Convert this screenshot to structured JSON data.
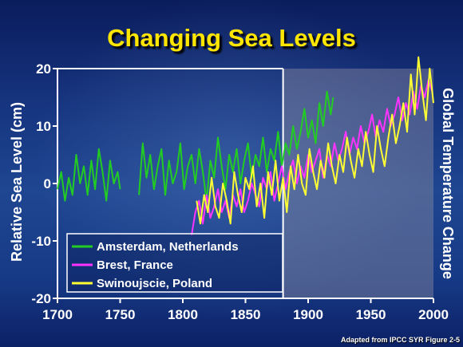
{
  "slide": {
    "title": "Changing Sea Levels",
    "credit": "Adapted from IPCC SYR Figure 2-5"
  },
  "colors": {
    "title": "#ffe600",
    "axis": "#ffffff",
    "overlay": "#8a8aa0"
  },
  "chart_data": {
    "type": "line",
    "title": "Changing Sea Levels",
    "ylabel": "Relative Sea Level (cm)",
    "ylabel_right": "Global Temperature Change",
    "xlim": [
      1700,
      2000
    ],
    "ylim": [
      -20,
      20
    ],
    "x_ticks": [
      1700,
      1750,
      1800,
      1850,
      1900,
      1950,
      2000
    ],
    "y_ticks": [
      20,
      10,
      0,
      -10,
      -20
    ],
    "legend_placement": "bottom-left",
    "shaded_region_x": [
      1880,
      2000
    ],
    "series": [
      {
        "name": "Amsterdam, Netherlands",
        "color": "#22cc22",
        "segments": [
          {
            "x": [
              1700,
              1703,
              1706,
              1709,
              1712,
              1715,
              1718,
              1721,
              1724,
              1727,
              1730,
              1733,
              1736,
              1739,
              1742,
              1745,
              1748,
              1750
            ],
            "y": [
              -1,
              2,
              -3,
              1,
              -2,
              5,
              0,
              3,
              -2,
              4,
              -1,
              6,
              2,
              -3,
              4,
              0,
              2,
              -1
            ]
          },
          {
            "x": [
              1765,
              1768,
              1771,
              1774,
              1777,
              1780,
              1783,
              1786,
              1789,
              1792,
              1795,
              1798,
              1801,
              1804,
              1807,
              1810,
              1813,
              1816,
              1819,
              1822,
              1825,
              1828,
              1831,
              1834,
              1837,
              1840,
              1843,
              1846,
              1849,
              1852,
              1855,
              1858,
              1861,
              1864,
              1867,
              1870,
              1873,
              1876,
              1879,
              1882,
              1885,
              1888,
              1891,
              1894,
              1897,
              1900,
              1903,
              1906,
              1909,
              1912,
              1915,
              1918,
              1920
            ],
            "y": [
              -2,
              7,
              1,
              5,
              -1,
              3,
              6,
              -2,
              4,
              0,
              2,
              7,
              -1,
              3,
              5,
              0,
              6,
              2,
              -3,
              4,
              1,
              8,
              3,
              -1,
              5,
              2,
              6,
              0,
              4,
              7,
              1,
              5,
              3,
              8,
              2,
              6,
              4,
              9,
              3,
              7,
              5,
              10,
              6,
              9,
              13,
              8,
              11,
              7,
              14,
              10,
              16,
              12,
              15
            ]
          }
        ]
      },
      {
        "name": "Brest, France",
        "color": "#ff33ff",
        "segments": [
          {
            "x": [
              1807,
              1810,
              1813,
              1816,
              1819,
              1822,
              1825,
              1828,
              1831,
              1834,
              1837,
              1840,
              1843,
              1846,
              1849,
              1852,
              1855,
              1858,
              1861,
              1864,
              1867,
              1870,
              1873,
              1876,
              1879,
              1882,
              1885,
              1888,
              1891,
              1894,
              1897,
              1900,
              1903,
              1906,
              1909,
              1912,
              1915,
              1918,
              1921,
              1924,
              1927,
              1930,
              1933,
              1936,
              1939,
              1942,
              1945,
              1948,
              1951,
              1954,
              1957,
              1960,
              1963,
              1966,
              1969,
              1972,
              1975,
              1978,
              1981,
              1984,
              1987,
              1990,
              1993,
              1996,
              1999
            ],
            "y": [
              -9,
              -5,
              -3,
              -7,
              -2,
              -6,
              -4,
              -1,
              -5,
              -3,
              -6,
              -2,
              -4,
              -1,
              -5,
              -3,
              0,
              -2,
              -4,
              1,
              -1,
              2,
              -3,
              0,
              3,
              -1,
              2,
              4,
              0,
              3,
              1,
              5,
              2,
              4,
              6,
              1,
              5,
              3,
              7,
              4,
              6,
              9,
              5,
              8,
              6,
              10,
              7,
              9,
              12,
              8,
              11,
              9,
              13,
              10,
              12,
              15,
              11,
              14,
              12,
              16,
              13,
              17,
              15,
              18,
              16
            ]
          }
        ]
      },
      {
        "name": "Swinoujscie, Poland",
        "color": "#ffff33",
        "segments": [
          {
            "x": [
              1811,
              1814,
              1817,
              1820,
              1823,
              1826,
              1829,
              1832,
              1835,
              1838,
              1841,
              1844,
              1847,
              1850,
              1853,
              1856,
              1859,
              1862,
              1865,
              1868,
              1871,
              1874,
              1877,
              1880,
              1883,
              1886,
              1889,
              1892,
              1895,
              1898,
              1901,
              1904,
              1907,
              1910,
              1913,
              1916,
              1919,
              1922,
              1925,
              1928,
              1931,
              1934,
              1937,
              1940,
              1943,
              1946,
              1949,
              1952,
              1955,
              1958,
              1961,
              1964,
              1967,
              1970,
              1973,
              1976,
              1979,
              1982,
              1985,
              1988,
              1991,
              1994,
              1997,
              2000
            ],
            "y": [
              -3,
              -7,
              -2,
              -5,
              1,
              -4,
              -6,
              0,
              -3,
              -7,
              2,
              -2,
              -5,
              1,
              -1,
              3,
              -4,
              0,
              -6,
              2,
              -2,
              4,
              -3,
              1,
              -5,
              3,
              -1,
              5,
              0,
              -2,
              6,
              2,
              -1,
              4,
              1,
              7,
              3,
              0,
              5,
              2,
              8,
              4,
              1,
              6,
              3,
              9,
              5,
              2,
              10,
              6,
              3,
              8,
              12,
              7,
              10,
              14,
              9,
              19,
              12,
              22,
              16,
              11,
              20,
              14
            ]
          }
        ]
      }
    ]
  }
}
